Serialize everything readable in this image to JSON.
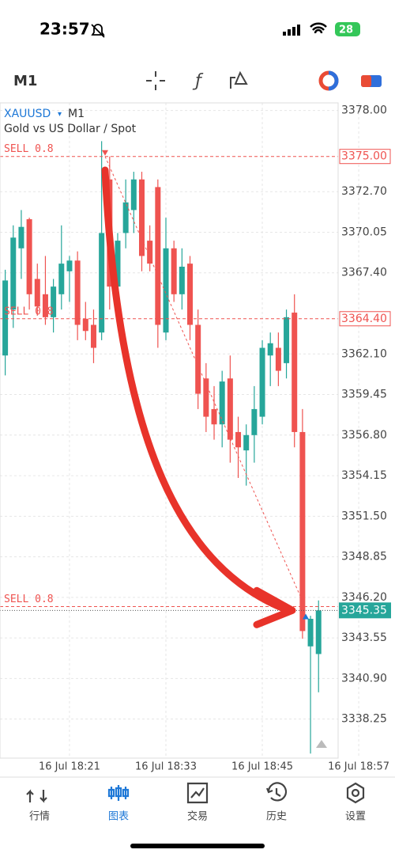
{
  "status_bar": {
    "time": "23:57",
    "battery": "28"
  },
  "toolbar": {
    "timeframe": "M1"
  },
  "chart_header": {
    "symbol": "XAUUSD",
    "timeframe": "M1",
    "description": "Gold vs US Dollar / Spot"
  },
  "chart_data": {
    "type": "candlestick",
    "categories": [
      null,
      null,
      null,
      null,
      null,
      null,
      null,
      null,
      "16 Jul 18:21",
      null,
      null,
      null,
      null,
      null,
      null,
      null,
      null,
      null,
      null,
      null,
      "16 Jul 18:33",
      null,
      null,
      null,
      null,
      null,
      null,
      null,
      null,
      null,
      null,
      null,
      "16 Jul 18:45",
      null,
      null,
      null,
      null,
      null,
      null,
      null,
      null,
      null,
      null,
      null,
      "16 Jul 18:57"
    ],
    "open": [
      3362.0,
      3365.0,
      3369.0,
      3370.9,
      3367.0,
      3366.0,
      3364.5,
      3366.0,
      3367.5,
      3368.2,
      3364.4,
      3364.0,
      3363.5,
      3373.5,
      3366.5,
      3370.0,
      3371.5,
      3373.5,
      3369.5,
      3373.0,
      3363.5,
      3369.0,
      3366.0,
      3368.0,
      3364.0,
      3360.5,
      3358.5,
      3357.5,
      3360.5,
      3357.0,
      3355.8,
      3356.8,
      3358.0,
      3362.0,
      3362.5,
      3361.5,
      3364.8,
      3357.0,
      3343.0,
      3342.5,
      null,
      null,
      null,
      null,
      null
    ],
    "high": [
      3367.6,
      3370.5,
      3371.5,
      3371.0,
      3368.0,
      3368.5,
      3367.0,
      3370.5,
      3368.5,
      3368.8,
      3365.5,
      3365.0,
      3376.0,
      3375.0,
      3370.0,
      3373.5,
      3374.0,
      3374.0,
      3370.5,
      3373.5,
      3371.0,
      3369.5,
      3369.0,
      3368.5,
      3365.0,
      3361.5,
      3360.0,
      3361.0,
      3362.0,
      3358.0,
      3357.5,
      3360.0,
      3363.0,
      3363.5,
      3363.5,
      3365.0,
      3366.0,
      3358.5,
      3345.0,
      3346.0,
      null,
      null,
      null,
      null,
      null
    ],
    "low": [
      3360.7,
      3363.8,
      3367.0,
      3365.0,
      3364.6,
      3364.0,
      3363.5,
      3365.0,
      3365.5,
      3363.0,
      3363.0,
      3361.5,
      3363.0,
      3365.0,
      3365.5,
      3369.0,
      3370.0,
      3367.5,
      3367.5,
      3362.5,
      3363.0,
      3365.5,
      3365.0,
      3363.0,
      3358.5,
      3357.0,
      3356.5,
      3356.0,
      3355.0,
      3354.0,
      3353.5,
      3355.0,
      3357.5,
      3360.0,
      3360.0,
      3360.5,
      3356.0,
      3343.5,
      3336.0,
      3340.0,
      null,
      null,
      null,
      null,
      null
    ],
    "close": [
      3366.9,
      3369.7,
      3370.4,
      3366.0,
      3365.2,
      3364.5,
      3366.5,
      3368.0,
      3368.2,
      3364.0,
      3363.6,
      3362.5,
      3370.0,
      3366.5,
      3369.5,
      3372.0,
      3373.5,
      3368.5,
      3368.0,
      3364.0,
      3369.0,
      3366.0,
      3367.8,
      3364.0,
      3359.5,
      3358.0,
      3357.5,
      3360.3,
      3356.5,
      3356.0,
      3356.8,
      3358.5,
      3362.5,
      3362.8,
      3361.0,
      3364.5,
      3357.0,
      3344.0,
      3344.8,
      3345.35,
      null,
      null,
      null,
      null,
      null
    ],
    "up_color": "#26a69a",
    "down_color": "#ef5350",
    "ylim": [
      3335.7,
      3378.5
    ],
    "yticks": [
      {
        "value": 3378.0,
        "label": "3378.00"
      },
      {
        "value": 3372.7,
        "label": "3372.70"
      },
      {
        "value": 3370.05,
        "label": "3370.05"
      },
      {
        "value": 3367.4,
        "label": "3367.40"
      },
      {
        "value": 3362.1,
        "label": "3362.10"
      },
      {
        "value": 3359.45,
        "label": "3359.45"
      },
      {
        "value": 3356.8,
        "label": "3356.80"
      },
      {
        "value": 3354.15,
        "label": "3354.15"
      },
      {
        "value": 3351.5,
        "label": "3351.50"
      },
      {
        "value": 3348.85,
        "label": "3348.85"
      },
      {
        "value": 3346.2,
        "label": "3346.20"
      },
      {
        "value": 3343.55,
        "label": "3343.55"
      },
      {
        "value": 3340.9,
        "label": "3340.90"
      },
      {
        "value": 3338.25,
        "label": "3338.25"
      }
    ],
    "orders": [
      {
        "label": "SELL 0.8",
        "price": 3375.0,
        "price_label": "3375.00"
      },
      {
        "label": "SELL 0.8",
        "price": 3364.4,
        "price_label": "3364.40"
      },
      {
        "label": "SELL 0.8",
        "price": 3345.6
      }
    ],
    "current_price": {
      "value": 3345.35,
      "label": "3345.35"
    },
    "grid": true
  },
  "nav": {
    "items": [
      "行情",
      "图表",
      "交易",
      "历史",
      "设置"
    ],
    "active": 1
  }
}
